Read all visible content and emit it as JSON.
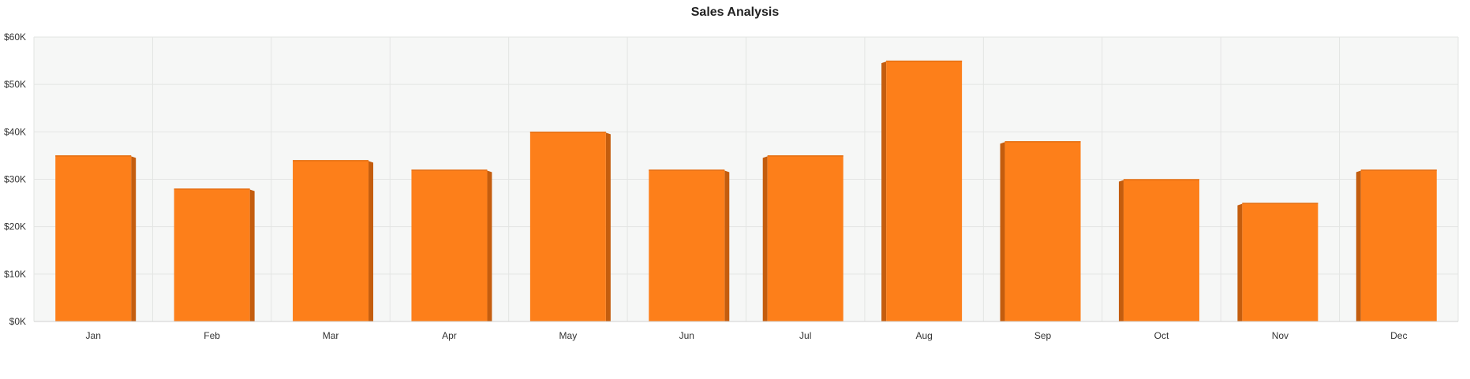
{
  "chart_data": {
    "type": "bar",
    "title": "Sales Analysis",
    "categories": [
      "Jan",
      "Feb",
      "Mar",
      "Apr",
      "May",
      "Jun",
      "Jul",
      "Aug",
      "Sep",
      "Oct",
      "Nov",
      "Dec"
    ],
    "values": [
      35000,
      28000,
      34000,
      32000,
      40000,
      32000,
      35000,
      55000,
      38000,
      30000,
      25000,
      32000
    ],
    "ylim": [
      0,
      60000
    ],
    "y_ticks": [
      0,
      10000,
      20000,
      30000,
      40000,
      50000,
      60000
    ],
    "y_tick_labels": [
      "$0K",
      "$10K",
      "$20K",
      "$30K",
      "$40K",
      "$50K",
      "$60K"
    ],
    "grid": true,
    "legend": "none",
    "colors": {
      "bar_face": "#fd7f1a",
      "bar_side": "#c45d0e",
      "plot_background": "#f6f7f6",
      "grid": "#e3e5e3",
      "text": "#333333"
    }
  }
}
